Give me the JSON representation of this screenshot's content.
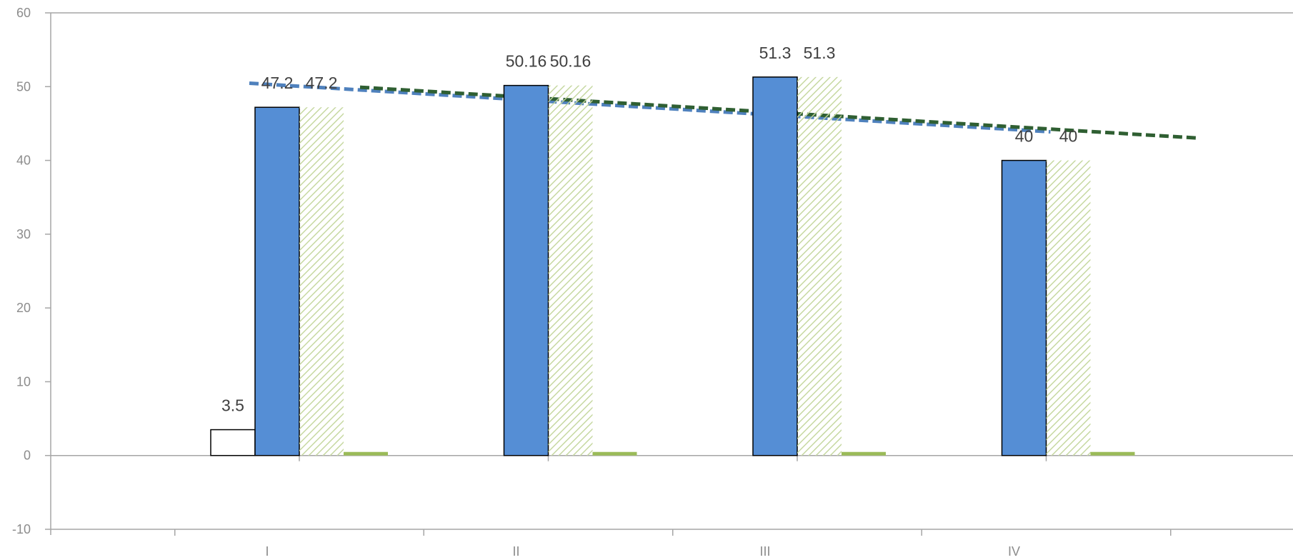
{
  "chart_data": {
    "type": "bar",
    "categories": [
      "I",
      "II",
      "III",
      "IV"
    ],
    "ylim": [
      -10,
      60
    ],
    "yticks": [
      -10,
      0,
      10,
      20,
      30,
      40,
      50,
      60
    ],
    "grid": false,
    "legend": "none",
    "series": [
      {
        "values": [
          3.5,
          null,
          null,
          null
        ],
        "color": "#ffffff",
        "stroke": "#000000",
        "style": "outline"
      },
      {
        "values": [
          47.2,
          50.16,
          51.3,
          40
        ],
        "color": "#558ed5",
        "stroke": "#000000",
        "style": "solid"
      },
      {
        "values": [
          47.2,
          50.16,
          51.3,
          40
        ],
        "color": "#d7e4bd",
        "style": "hatched"
      },
      {
        "values": [
          0.4,
          0.4,
          0.4,
          0.4
        ],
        "color": "#9bbb59",
        "style": "solid"
      }
    ],
    "data_labels": [
      {
        "series": 0,
        "texts": [
          "3.5",
          "",
          "",
          ""
        ]
      },
      {
        "series": 1,
        "texts": [
          "47.2",
          "50.16",
          "51.3",
          "40"
        ]
      },
      {
        "series": 2,
        "texts": [
          "47.2",
          "50.16",
          "51.3",
          "40"
        ]
      }
    ],
    "trendlines": [
      {
        "series": 1,
        "kind": "linear",
        "color": "#4f81bd",
        "dash": "dashed"
      },
      {
        "series": 2,
        "kind": "linear",
        "color": "#2f5f32",
        "dash": "dashed"
      }
    ]
  }
}
